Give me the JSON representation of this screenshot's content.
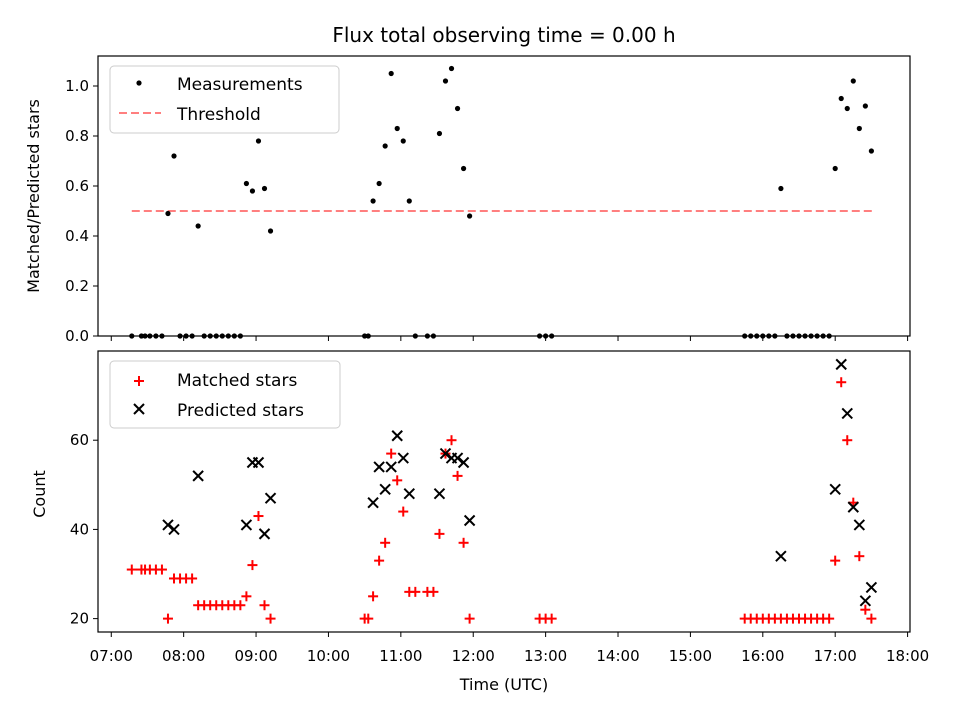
{
  "chart_data": [
    {
      "type": "scatter",
      "title": "Flux total observing time = 0.00 h",
      "ylabel": "Matched/Predicted stars",
      "xlabel": "",
      "ylim": [
        0,
        1.12
      ],
      "yticks": [
        "0.0",
        "0.2",
        "0.4",
        "0.6",
        "0.8",
        "1.0"
      ],
      "legend": {
        "placement": "top-left",
        "entries": [
          "Measurements",
          "Threshold"
        ]
      },
      "series": [
        {
          "name": "Measurements",
          "color": "#000000",
          "marker": "dot",
          "points": [
            [
              "07:17",
              0
            ],
            [
              "07:25",
              0
            ],
            [
              "07:28",
              0
            ],
            [
              "07:32",
              0
            ],
            [
              "07:37",
              0
            ],
            [
              "07:42",
              0
            ],
            [
              "07:47",
              0.49
            ],
            [
              "07:52",
              0.72
            ],
            [
              "07:57",
              0
            ],
            [
              "08:02",
              0
            ],
            [
              "08:07",
              0
            ],
            [
              "08:12",
              0.44
            ],
            [
              "08:17",
              0
            ],
            [
              "08:22",
              0
            ],
            [
              "08:27",
              0
            ],
            [
              "08:32",
              0
            ],
            [
              "08:37",
              0
            ],
            [
              "08:42",
              0
            ],
            [
              "08:47",
              0
            ],
            [
              "08:52",
              0.61
            ],
            [
              "08:57",
              0.58
            ],
            [
              "09:02",
              0.78
            ],
            [
              "09:07",
              0.59
            ],
            [
              "09:12",
              0.42
            ],
            [
              "10:30",
              0
            ],
            [
              "10:33",
              0
            ],
            [
              "10:37",
              0.54
            ],
            [
              "10:42",
              0.61
            ],
            [
              "10:47",
              0.76
            ],
            [
              "10:52",
              1.05
            ],
            [
              "10:57",
              0.83
            ],
            [
              "11:02",
              0.78
            ],
            [
              "11:07",
              0.54
            ],
            [
              "11:12",
              0
            ],
            [
              "11:22",
              0
            ],
            [
              "11:27",
              0
            ],
            [
              "11:32",
              0.81
            ],
            [
              "11:37",
              1.02
            ],
            [
              "11:42",
              1.07
            ],
            [
              "11:47",
              0.91
            ],
            [
              "11:52",
              0.67
            ],
            [
              "11:57",
              0.48
            ],
            [
              "12:55",
              0
            ],
            [
              "13:00",
              0
            ],
            [
              "13:05",
              0
            ],
            [
              "15:45",
              0
            ],
            [
              "15:50",
              0
            ],
            [
              "15:55",
              0
            ],
            [
              "16:00",
              0
            ],
            [
              "16:05",
              0
            ],
            [
              "16:10",
              0
            ],
            [
              "16:15",
              0.59
            ],
            [
              "16:20",
              0
            ],
            [
              "16:25",
              0
            ],
            [
              "16:30",
              0
            ],
            [
              "16:35",
              0
            ],
            [
              "16:40",
              0
            ],
            [
              "16:45",
              0
            ],
            [
              "16:50",
              0
            ],
            [
              "16:55",
              0
            ],
            [
              "17:00",
              0.67
            ],
            [
              "17:05",
              0.95
            ],
            [
              "17:10",
              0.91
            ],
            [
              "17:15",
              1.02
            ],
            [
              "17:20",
              0.83
            ],
            [
              "17:25",
              0.92
            ],
            [
              "17:30",
              0.74
            ]
          ]
        },
        {
          "name": "Threshold",
          "color": "#ff7f7f",
          "marker": "dashed-line",
          "points": [
            [
              "07:17",
              0.5
            ],
            [
              "17:33",
              0.5
            ]
          ]
        }
      ]
    },
    {
      "type": "scatter",
      "title": "",
      "ylabel": "Count",
      "xlabel": "Time (UTC)",
      "ylim": [
        17,
        80
      ],
      "yticks": [
        "20",
        "40",
        "60"
      ],
      "xticks": [
        "07:00",
        "08:00",
        "09:00",
        "10:00",
        "11:00",
        "12:00",
        "13:00",
        "14:00",
        "15:00",
        "16:00",
        "17:00",
        "18:00"
      ],
      "legend": {
        "placement": "top-left",
        "entries": [
          "Matched stars",
          "Predicted stars"
        ]
      },
      "series": [
        {
          "name": "Matched stars",
          "color": "#ff0000",
          "marker": "plus",
          "points": [
            [
              "07:17",
              31
            ],
            [
              "07:25",
              31
            ],
            [
              "07:28",
              31
            ],
            [
              "07:32",
              31
            ],
            [
              "07:37",
              31
            ],
            [
              "07:42",
              31
            ],
            [
              "07:47",
              20
            ],
            [
              "07:52",
              29
            ],
            [
              "07:57",
              29
            ],
            [
              "08:02",
              29
            ],
            [
              "08:07",
              29
            ],
            [
              "08:12",
              23
            ],
            [
              "08:17",
              23
            ],
            [
              "08:22",
              23
            ],
            [
              "08:27",
              23
            ],
            [
              "08:32",
              23
            ],
            [
              "08:37",
              23
            ],
            [
              "08:42",
              23
            ],
            [
              "08:47",
              23
            ],
            [
              "08:52",
              25
            ],
            [
              "08:57",
              32
            ],
            [
              "09:02",
              43
            ],
            [
              "09:07",
              23
            ],
            [
              "09:12",
              20
            ],
            [
              "10:30",
              20
            ],
            [
              "10:33",
              20
            ],
            [
              "10:37",
              25
            ],
            [
              "10:42",
              33
            ],
            [
              "10:47",
              37
            ],
            [
              "10:52",
              57
            ],
            [
              "10:57",
              51
            ],
            [
              "11:02",
              44
            ],
            [
              "11:07",
              26
            ],
            [
              "11:12",
              26
            ],
            [
              "11:22",
              26
            ],
            [
              "11:27",
              26
            ],
            [
              "11:32",
              39
            ],
            [
              "11:37",
              57
            ],
            [
              "11:42",
              60
            ],
            [
              "11:47",
              52
            ],
            [
              "11:52",
              37
            ],
            [
              "11:57",
              20
            ],
            [
              "12:55",
              20
            ],
            [
              "13:00",
              20
            ],
            [
              "13:05",
              20
            ],
            [
              "15:45",
              20
            ],
            [
              "15:50",
              20
            ],
            [
              "15:55",
              20
            ],
            [
              "16:00",
              20
            ],
            [
              "16:05",
              20
            ],
            [
              "16:10",
              20
            ],
            [
              "16:15",
              20
            ],
            [
              "16:20",
              20
            ],
            [
              "16:25",
              20
            ],
            [
              "16:30",
              20
            ],
            [
              "16:35",
              20
            ],
            [
              "16:40",
              20
            ],
            [
              "16:45",
              20
            ],
            [
              "16:50",
              20
            ],
            [
              "16:55",
              20
            ],
            [
              "17:00",
              33
            ],
            [
              "17:05",
              73
            ],
            [
              "17:10",
              60
            ],
            [
              "17:15",
              46
            ],
            [
              "17:20",
              34
            ],
            [
              "17:25",
              22
            ],
            [
              "17:30",
              20
            ]
          ]
        },
        {
          "name": "Predicted stars",
          "color": "#000000",
          "marker": "x",
          "points": [
            [
              "07:47",
              41
            ],
            [
              "07:52",
              40
            ],
            [
              "08:12",
              52
            ],
            [
              "08:52",
              41
            ],
            [
              "08:57",
              55
            ],
            [
              "09:02",
              55
            ],
            [
              "09:07",
              39
            ],
            [
              "09:12",
              47
            ],
            [
              "10:37",
              46
            ],
            [
              "10:42",
              54
            ],
            [
              "10:47",
              49
            ],
            [
              "10:52",
              54
            ],
            [
              "10:57",
              61
            ],
            [
              "11:02",
              56
            ],
            [
              "11:07",
              48
            ],
            [
              "11:32",
              48
            ],
            [
              "11:37",
              57
            ],
            [
              "11:42",
              56
            ],
            [
              "11:47",
              56
            ],
            [
              "11:52",
              55
            ],
            [
              "11:57",
              42
            ],
            [
              "16:15",
              34
            ],
            [
              "17:00",
              49
            ],
            [
              "17:05",
              77
            ],
            [
              "17:10",
              66
            ],
            [
              "17:15",
              45
            ],
            [
              "17:20",
              41
            ],
            [
              "17:25",
              24
            ],
            [
              "17:30",
              27
            ]
          ]
        }
      ]
    }
  ]
}
